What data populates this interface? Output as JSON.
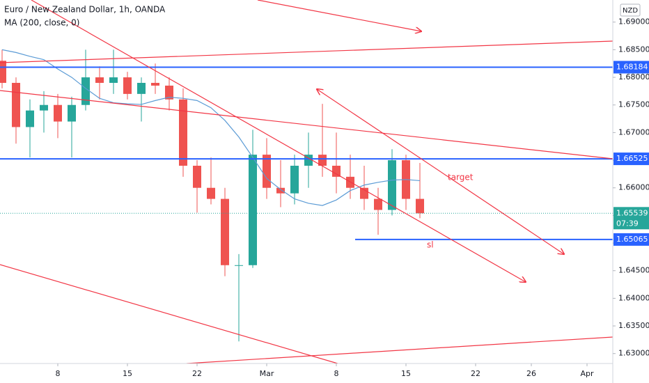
{
  "chart_data": {
    "type": "candlestick",
    "title": "Euro / New Zealand Dollar, 1h, OANDA",
    "currency": "NZD",
    "x": [
      1,
      2,
      3,
      4,
      5,
      6,
      7,
      8,
      9,
      10,
      11,
      12,
      13,
      14,
      15,
      16,
      17,
      18,
      19,
      20,
      21,
      22,
      23,
      24,
      25,
      26,
      27,
      28,
      29,
      30,
      31
    ],
    "open": [
      1.683,
      1.679,
      1.671,
      1.674,
      1.675,
      1.672,
      1.675,
      1.68,
      1.679,
      1.68,
      1.677,
      1.679,
      1.6785,
      1.676,
      1.664,
      1.66,
      1.658,
      1.646,
      1.646,
      1.666,
      1.66,
      1.659,
      1.664,
      1.666,
      1.664,
      1.662,
      1.66,
      1.658,
      1.656,
      1.665,
      1.658
    ],
    "high": [
      1.685,
      1.68,
      1.676,
      1.6775,
      1.677,
      1.6765,
      1.685,
      1.682,
      1.685,
      1.681,
      1.68,
      1.6825,
      1.68,
      1.678,
      1.665,
      1.6655,
      1.66,
      1.648,
      1.6705,
      1.669,
      1.665,
      1.666,
      1.67,
      1.6752,
      1.67,
      1.666,
      1.664,
      1.66,
      1.667,
      1.666,
      1.6645
    ],
    "low": [
      1.678,
      1.668,
      1.6655,
      1.67,
      1.669,
      1.6655,
      1.674,
      1.676,
      1.677,
      1.676,
      1.672,
      1.677,
      1.674,
      1.662,
      1.6555,
      1.657,
      1.644,
      1.6322,
      1.6455,
      1.658,
      1.6565,
      1.657,
      1.66,
      1.662,
      1.659,
      1.658,
      1.656,
      1.6515,
      1.655,
      1.656,
      1.6545
    ],
    "close": [
      1.679,
      1.671,
      1.674,
      1.675,
      1.672,
      1.675,
      1.68,
      1.679,
      1.68,
      1.677,
      1.679,
      1.6785,
      1.676,
      1.664,
      1.66,
      1.658,
      1.646,
      1.646,
      1.666,
      1.66,
      1.659,
      1.664,
      1.666,
      1.664,
      1.662,
      1.66,
      1.658,
      1.656,
      1.665,
      1.658,
      1.65539
    ],
    "up_color": "#26a69a",
    "down_color": "#ef5350",
    "ma": {
      "name": "MA (200, close, 0)",
      "color": "#5b9bd5",
      "values": [
        1.685,
        1.6845,
        1.6838,
        1.6832,
        1.6815,
        1.68,
        1.678,
        1.6762,
        1.6754,
        1.6752,
        1.6751,
        1.6758,
        1.6764,
        1.6762,
        1.6758,
        1.6745,
        1.6722,
        1.6692,
        1.6655,
        1.6617,
        1.6597,
        1.658,
        1.6572,
        1.6568,
        1.6578,
        1.6595,
        1.6605,
        1.661,
        1.6614,
        1.6615,
        1.6613
      ]
    },
    "xlim": [
      0.85,
      44.85
    ],
    "xticks": [
      {
        "value": 5,
        "label": "8"
      },
      {
        "value": 10,
        "label": "15"
      },
      {
        "value": 15,
        "label": "22"
      },
      {
        "value": 20,
        "label": "Mar"
      },
      {
        "value": 25,
        "label": "8"
      },
      {
        "value": 30,
        "label": "15"
      },
      {
        "value": 35,
        "label": "22"
      },
      {
        "value": 39,
        "label": "26"
      },
      {
        "value": 43,
        "label": "Apr"
      }
    ],
    "ylim": [
      1.6282,
      1.694
    ],
    "yticks": [
      {
        "value": 1.69,
        "label": "1.69000"
      },
      {
        "value": 1.685,
        "label": "1.68500"
      },
      {
        "value": 1.68,
        "label": "1.68000"
      },
      {
        "value": 1.675,
        "label": "1.67500"
      },
      {
        "value": 1.67,
        "label": "1.67000"
      },
      {
        "value": 1.665,
        "label": "1.66500"
      },
      {
        "value": 1.66,
        "label": "1.66000"
      },
      {
        "value": 1.655,
        "label": "1.65500"
      },
      {
        "value": 1.65,
        "label": "1.65000"
      },
      {
        "value": 1.645,
        "label": "1.64500"
      },
      {
        "value": 1.64,
        "label": "1.64000"
      },
      {
        "value": 1.635,
        "label": "1.63500"
      },
      {
        "value": 1.63,
        "label": "1.63000"
      }
    ],
    "hlines": [
      {
        "value": 1.68184,
        "label": "1.68184",
        "color": "#2962ff"
      },
      {
        "value": 1.66525,
        "label": "1.66525",
        "color": "#2962ff"
      },
      {
        "value": 1.65065,
        "label": "1.65065",
        "color": "#2962ff"
      }
    ],
    "last_price": {
      "value": 1.65539,
      "label": "1.65539",
      "countdown": "07:39",
      "color": "#26a69a"
    },
    "annotations": [
      "target",
      "sl"
    ]
  }
}
